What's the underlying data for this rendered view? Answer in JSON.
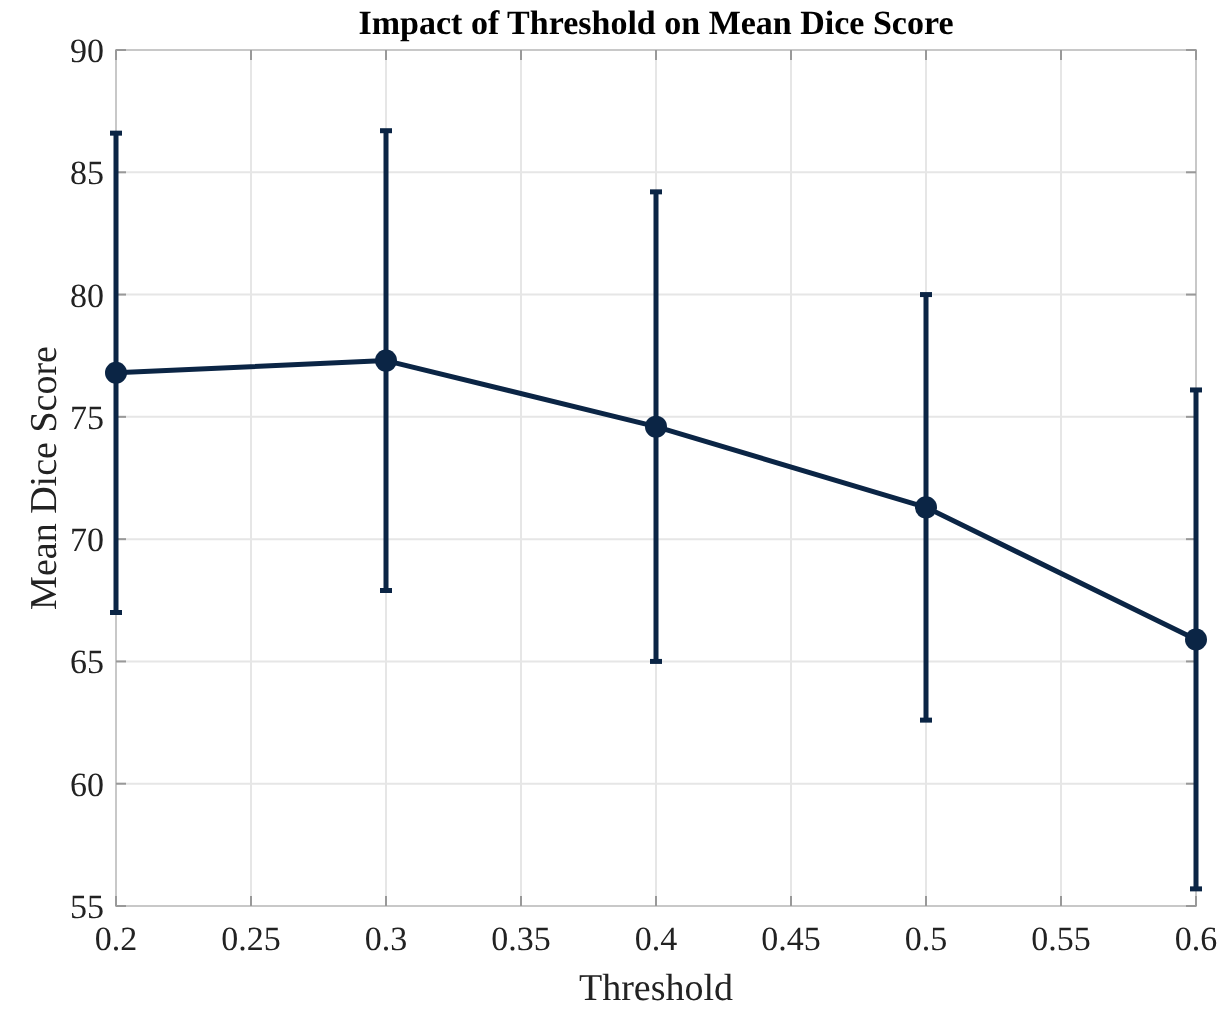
{
  "chart_data": {
    "type": "line",
    "title": "Impact of Threshold on Mean Dice Score",
    "xlabel": "Threshold",
    "ylabel": "Mean Dice Score",
    "x": [
      0.2,
      0.3,
      0.4,
      0.5,
      0.6
    ],
    "series": [
      {
        "color": "#0b2545",
        "values": [
          76.8,
          77.3,
          74.6,
          71.3,
          65.9
        ],
        "errors": [
          [
            67.0,
            86.6
          ],
          [
            67.9,
            86.7
          ],
          [
            65.0,
            84.2
          ],
          [
            62.6,
            80.0
          ],
          [
            55.7,
            76.1
          ]
        ]
      }
    ],
    "xlim": [
      0.2,
      0.6
    ],
    "xticks": [
      0.2,
      0.25,
      0.3,
      0.35,
      0.4,
      0.45,
      0.5,
      0.55,
      0.6
    ],
    "ylim": [
      55,
      90
    ],
    "yticks": [
      55,
      60,
      65,
      70,
      75,
      80,
      85,
      90
    ],
    "grid": true,
    "marker": "circle",
    "line_style": "solid"
  }
}
